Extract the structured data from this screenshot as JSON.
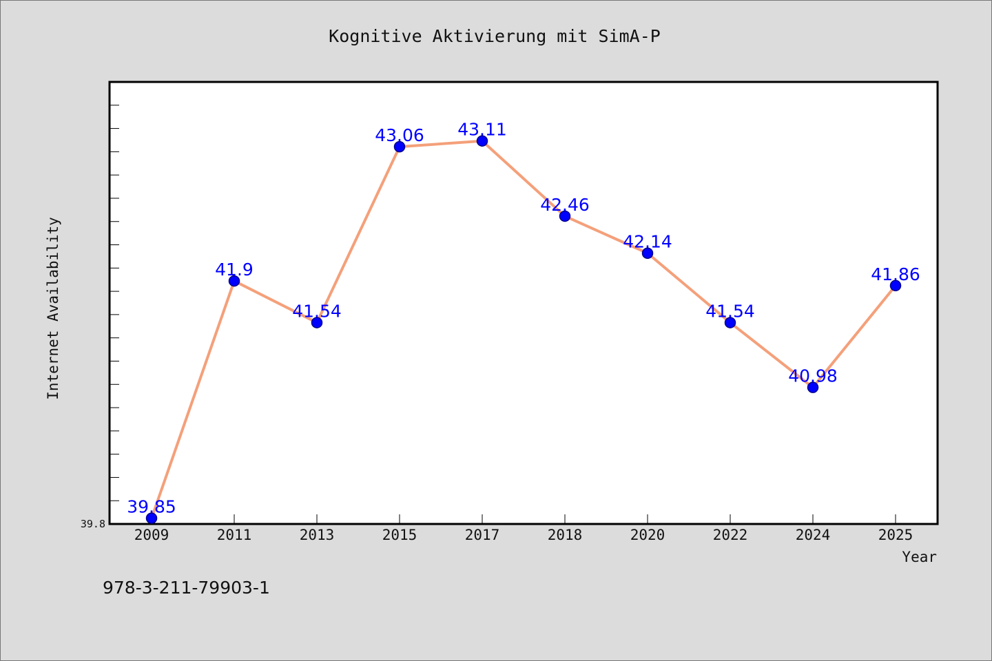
{
  "chart_data": {
    "type": "line",
    "title": "Kognitive Aktivierung mit SimA-P",
    "xlabel": "Year",
    "ylabel": "Internet Availability",
    "categories": [
      "2009",
      "2011",
      "2013",
      "2015",
      "2017",
      "2018",
      "2020",
      "2022",
      "2024",
      "2025"
    ],
    "series": [
      {
        "values": [
          39.85,
          41.9,
          41.54,
          43.06,
          43.11,
          42.46,
          42.14,
          41.54,
          40.98,
          41.86
        ]
      }
    ],
    "yticks": [
      "39.8"
    ],
    "ylim": [
      39.8,
      43.62
    ],
    "grid": false,
    "legend": "none",
    "colors": {
      "line": "#f4a07a",
      "marker": "#0000ff",
      "marker_edge": "#00008b",
      "label": "#0000ff",
      "background": "#dcdcdc",
      "plot_background": "#ffffff"
    }
  },
  "footer": {
    "isbn": "978-3-211-79903-1"
  }
}
